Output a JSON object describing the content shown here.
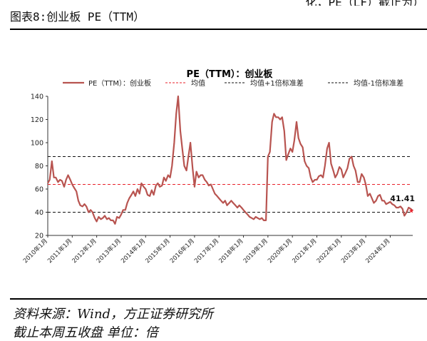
{
  "header": {
    "top_right_clipped": "化，PE（LF）截止为）",
    "figure_title": "图表8:创业板 PE（TTM）"
  },
  "footer": {
    "source": "资料来源：Wind，方正证券研究所",
    "note": "截止本周五收盘 单位：倍"
  },
  "chart_data": {
    "type": "line",
    "title": "PE（TTM）：创业板",
    "ylim": [
      20,
      140
    ],
    "yticks": [
      20,
      40,
      60,
      80,
      100,
      120,
      140
    ],
    "xlim": [
      2010.0,
      2024.92
    ],
    "x_tick_labels": [
      "2010年1月",
      "2011年1月",
      "2012年1月",
      "2013年1月",
      "2014年1月",
      "2015年1月",
      "2016年1月",
      "2017年1月",
      "2018年1月",
      "2019年1月",
      "2020年1月",
      "2021年1月",
      "2022年1月",
      "2023年1月",
      "2024年1月"
    ],
    "legend": {
      "position": "top",
      "items": [
        {
          "label": "PE（TTM）：创业板",
          "style": "solid",
          "color": "#b85450"
        },
        {
          "label": "均值",
          "style": "dashed",
          "color": "#e8202a"
        },
        {
          "label": "均值+1倍标准差",
          "style": "dashed",
          "color": "#111111"
        },
        {
          "label": "均值-1倍标准差",
          "style": "dashed",
          "color": "#111111"
        }
      ]
    },
    "series": [
      {
        "name": "PE（TTM）：创业板",
        "color": "#b85450",
        "x": [
          2010.0,
          2010.08,
          2010.17,
          2010.25,
          2010.33,
          2010.42,
          2010.5,
          2010.58,
          2010.67,
          2010.75,
          2010.83,
          2010.92,
          2011.0,
          2011.08,
          2011.17,
          2011.25,
          2011.33,
          2011.42,
          2011.5,
          2011.58,
          2011.67,
          2011.75,
          2011.83,
          2011.92,
          2012.0,
          2012.08,
          2012.17,
          2012.25,
          2012.33,
          2012.42,
          2012.5,
          2012.58,
          2012.67,
          2012.75,
          2012.83,
          2012.92,
          2013.0,
          2013.08,
          2013.17,
          2013.25,
          2013.33,
          2013.42,
          2013.5,
          2013.58,
          2013.67,
          2013.75,
          2013.83,
          2013.92,
          2014.0,
          2014.08,
          2014.17,
          2014.25,
          2014.33,
          2014.42,
          2014.5,
          2014.58,
          2014.67,
          2014.75,
          2014.83,
          2014.92,
          2015.0,
          2015.08,
          2015.17,
          2015.25,
          2015.33,
          2015.42,
          2015.5,
          2015.58,
          2015.67,
          2015.75,
          2015.83,
          2015.92,
          2016.0,
          2016.08,
          2016.17,
          2016.25,
          2016.33,
          2016.42,
          2016.5,
          2016.58,
          2016.67,
          2016.75,
          2016.83,
          2016.92,
          2017.0,
          2017.08,
          2017.17,
          2017.25,
          2017.33,
          2017.42,
          2017.5,
          2017.58,
          2017.67,
          2017.75,
          2017.83,
          2017.92,
          2018.0,
          2018.08,
          2018.17,
          2018.25,
          2018.33,
          2018.42,
          2018.5,
          2018.58,
          2018.67,
          2018.75,
          2018.83,
          2018.92,
          2019.0,
          2019.08,
          2019.17,
          2019.25,
          2019.33,
          2019.42,
          2019.5,
          2019.58,
          2019.67,
          2019.75,
          2019.83,
          2019.92,
          2020.0,
          2020.08,
          2020.17,
          2020.25,
          2020.33,
          2020.42,
          2020.5,
          2020.58,
          2020.67,
          2020.75,
          2020.83,
          2020.92,
          2021.0,
          2021.08,
          2021.17,
          2021.25,
          2021.33,
          2021.42,
          2021.5,
          2021.58,
          2021.67,
          2021.75,
          2021.83,
          2021.92,
          2022.0,
          2022.08,
          2022.17,
          2022.25,
          2022.33,
          2022.42,
          2022.5,
          2022.58,
          2022.67,
          2022.75,
          2022.83,
          2022.92,
          2023.0,
          2023.08,
          2023.17,
          2023.25,
          2023.33,
          2023.42,
          2023.5,
          2023.58,
          2023.67,
          2023.75,
          2023.83,
          2023.92,
          2024.0,
          2024.08,
          2024.17,
          2024.25,
          2024.33,
          2024.42,
          2024.5,
          2024.58,
          2024.67,
          2024.75,
          2024.83,
          2024.92
        ],
        "y": [
          65,
          68,
          84,
          70,
          70,
          66,
          68,
          67,
          62,
          68,
          72,
          68,
          64,
          61,
          58,
          50,
          46,
          45,
          47,
          45,
          40,
          42,
          40,
          35,
          32,
          36,
          34,
          35,
          37,
          34,
          35,
          33,
          33,
          30,
          36,
          35,
          38,
          42,
          42,
          48,
          52,
          55,
          58,
          54,
          60,
          56,
          65,
          62,
          60,
          55,
          54,
          59,
          55,
          63,
          65,
          62,
          63,
          70,
          67,
          72,
          70,
          80,
          100,
          125,
          140,
          110,
          95,
          80,
          76,
          88,
          100,
          78,
          62,
          75,
          70,
          72,
          72,
          68,
          66,
          63,
          64,
          60,
          56,
          54,
          52,
          50,
          48,
          50,
          46,
          48,
          50,
          48,
          46,
          44,
          46,
          44,
          42,
          40,
          38,
          36,
          35,
          34,
          36,
          35,
          34,
          35,
          33,
          33,
          88,
          92,
          118,
          125,
          122,
          122,
          120,
          122,
          110,
          85,
          90,
          95,
          92,
          102,
          118,
          104,
          99,
          96,
          84,
          80,
          78,
          70,
          66,
          68,
          68,
          71,
          72,
          70,
          80,
          95,
          100,
          82,
          76,
          70,
          73,
          79,
          77,
          70,
          74,
          78,
          86,
          88,
          80,
          76,
          66,
          66,
          73,
          70,
          64,
          54,
          56,
          52,
          48,
          50,
          54,
          55,
          50,
          50,
          47,
          48,
          49,
          47,
          46,
          44,
          44,
          45,
          43,
          37,
          40,
          44,
          43,
          41.41
        ]
      }
    ],
    "reference_lines": [
      {
        "name": "均值+1倍标准差",
        "value": 88,
        "color": "#111111",
        "dash": "4,3"
      },
      {
        "name": "均值",
        "value": 64,
        "color": "#e8202a",
        "dash": "4,3"
      },
      {
        "name": "均值-1倍标准差",
        "value": 40,
        "color": "#111111",
        "dash": "4,3"
      }
    ],
    "last_value": {
      "label": "41.41",
      "value": 41.41,
      "marker_color": "#e8202a"
    }
  }
}
